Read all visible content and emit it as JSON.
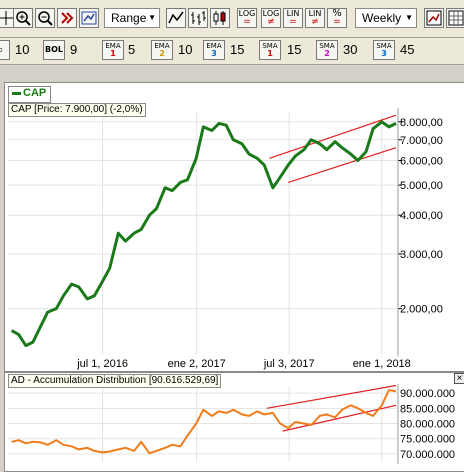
{
  "toolbar": {
    "range_label": "Range",
    "period_label": "Weekly",
    "buttons": [
      {
        "top": "LOG",
        "sub": "="
      },
      {
        "top": "LOG",
        "sub": "≠"
      },
      {
        "top": "LIN",
        "sub": "="
      },
      {
        "top": "LIN",
        "sub": "≠"
      },
      {
        "top": "%",
        "sub": "="
      }
    ]
  },
  "indicators": [
    {
      "value": "10"
    },
    {
      "name": "BOL",
      "value": "9"
    },
    {
      "name": "EMA",
      "num": "1",
      "value": "5"
    },
    {
      "name": "EMA",
      "num": "2",
      "value": "10"
    },
    {
      "name": "EMA",
      "num": "3",
      "value": "15"
    },
    {
      "name": "SMA",
      "num": "1",
      "value": "15"
    },
    {
      "name": "SMA",
      "num": "2",
      "value": "30"
    },
    {
      "name": "SMA",
      "num": "3",
      "value": "45"
    }
  ],
  "legend": {
    "symbol": "CAP"
  },
  "price_panel": {
    "title": "CAP [Price: 7.900,00] (-2,0%)",
    "y_ticks": [
      "8.000,00",
      "7.000,00",
      "6.000,00",
      "5.000,00",
      "4.000,00",
      "3.000,00",
      "2.000,00"
    ],
    "x_ticks": [
      "jul 1, 2016",
      "ene 2, 2017",
      "jul 3, 2017",
      "ene 1, 2018"
    ]
  },
  "ad_panel": {
    "title": "AD - Accumulation Distribution [90.616.529,69]",
    "y_ticks": [
      "90.000.000",
      "85.000.000",
      "80.000.000",
      "75.000.000",
      "70.000.000"
    ]
  },
  "colors": {
    "price_line": "#1a7a1a",
    "ad_line": "#f07c1a",
    "trend_line": "#e02020",
    "grid": "#e3e3e3"
  },
  "chart_data": [
    {
      "type": "line",
      "title": "CAP [Price: 7.900,00] (-2,0%)",
      "x_ticks": [
        "jul 1, 2016",
        "ene 2, 2017",
        "jul 3, 2017",
        "ene 1, 2018"
      ],
      "x_range": [
        "2015-12-28",
        "2018-01-29"
      ],
      "yscale": "log",
      "ylim": [
        1450,
        8600
      ],
      "series": [
        {
          "name": "CAP",
          "x": [
            "2016-01-04",
            "2016-01-18",
            "2016-02-01",
            "2016-02-15",
            "2016-03-01",
            "2016-03-15",
            "2016-04-01",
            "2016-04-15",
            "2016-05-01",
            "2016-05-15",
            "2016-06-01",
            "2016-06-15",
            "2016-07-01",
            "2016-07-15",
            "2016-08-01",
            "2016-08-15",
            "2016-09-01",
            "2016-09-15",
            "2016-10-01",
            "2016-10-15",
            "2016-11-01",
            "2016-11-15",
            "2016-12-01",
            "2016-12-15",
            "2017-01-01",
            "2017-01-15",
            "2017-02-01",
            "2017-02-15",
            "2017-03-01",
            "2017-03-15",
            "2017-04-01",
            "2017-04-15",
            "2017-05-01",
            "2017-05-15",
            "2017-06-01",
            "2017-06-15",
            "2017-07-01",
            "2017-07-15",
            "2017-08-01",
            "2017-08-15",
            "2017-09-01",
            "2017-09-15",
            "2017-10-01",
            "2017-10-15",
            "2017-11-01",
            "2017-11-15",
            "2017-12-01",
            "2017-12-15",
            "2018-01-01",
            "2018-01-15",
            "2018-01-29"
          ],
          "values": [
            1700,
            1650,
            1520,
            1560,
            1750,
            1950,
            2000,
            2200,
            2400,
            2350,
            2150,
            2200,
            2450,
            2700,
            3500,
            3300,
            3500,
            3600,
            4000,
            4200,
            4900,
            4800,
            5100,
            5200,
            6100,
            7700,
            7500,
            7900,
            7800,
            7000,
            6800,
            6300,
            6100,
            5800,
            4900,
            5300,
            5800,
            6200,
            6500,
            7000,
            6800,
            6500,
            6900,
            6600,
            6300,
            6000,
            6400,
            7600,
            8000,
            7700,
            7900
          ]
        }
      ]
    },
    {
      "type": "line",
      "title": "AD - Accumulation Distribution [90.616.529,69]",
      "x_range": [
        "2015-12-28",
        "2018-01-29"
      ],
      "ylim": [
        68000000,
        93000000
      ],
      "series": [
        {
          "name": "AD",
          "x": [
            "2016-01-04",
            "2016-01-18",
            "2016-02-01",
            "2016-02-15",
            "2016-03-01",
            "2016-03-15",
            "2016-04-01",
            "2016-04-15",
            "2016-05-01",
            "2016-05-15",
            "2016-06-01",
            "2016-06-15",
            "2016-07-01",
            "2016-07-15",
            "2016-08-01",
            "2016-08-15",
            "2016-09-01",
            "2016-09-15",
            "2016-10-01",
            "2016-10-15",
            "2016-11-01",
            "2016-11-15",
            "2016-12-01",
            "2016-12-15",
            "2017-01-01",
            "2017-01-15",
            "2017-02-01",
            "2017-02-15",
            "2017-03-01",
            "2017-03-15",
            "2017-04-01",
            "2017-04-15",
            "2017-05-01",
            "2017-05-15",
            "2017-06-01",
            "2017-06-15",
            "2017-07-01",
            "2017-07-15",
            "2017-08-01",
            "2017-08-15",
            "2017-09-01",
            "2017-09-15",
            "2017-10-01",
            "2017-10-15",
            "2017-11-01",
            "2017-11-15",
            "2017-12-01",
            "2017-12-15",
            "2018-01-01",
            "2018-01-15",
            "2018-01-29"
          ],
          "values": [
            74000000,
            74500000,
            73500000,
            74000000,
            73800000,
            73000000,
            74500000,
            73000000,
            72500000,
            71500000,
            72000000,
            71000000,
            70500000,
            70800000,
            71500000,
            72000000,
            71000000,
            74000000,
            70200000,
            71000000,
            72000000,
            73000000,
            72500000,
            76000000,
            80000000,
            84500000,
            82500000,
            84000000,
            83500000,
            84500000,
            83000000,
            82500000,
            84000000,
            83000000,
            83500000,
            80000000,
            78500000,
            80500000,
            80000000,
            79500000,
            82500000,
            83000000,
            82000000,
            84500000,
            86000000,
            85000000,
            83500000,
            82500000,
            86000000,
            91000000,
            90600000
          ]
        }
      ]
    }
  ]
}
